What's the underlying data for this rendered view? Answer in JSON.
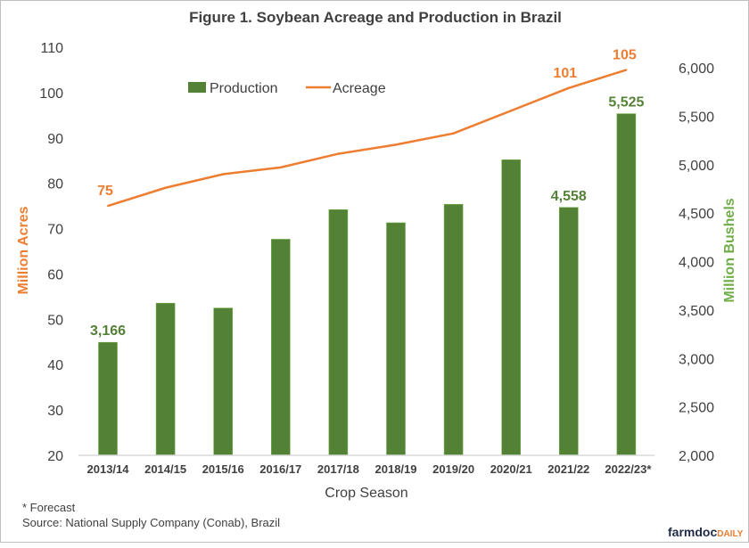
{
  "chart_data": {
    "type": "bar+line",
    "title": "Figure 1. Soybean Acreage and Production in Brazil",
    "xlabel": "Crop Season",
    "ylabel_left": "Million Acres",
    "ylabel_right": "Million Bushels",
    "categories": [
      "2013/14",
      "2014/15",
      "2015/16",
      "2016/17",
      "2017/18",
      "2018/19",
      "2019/20",
      "2020/21",
      "2021/22",
      "2022/23*"
    ],
    "left_axis": {
      "min": 20,
      "max": 110,
      "ticks": [
        "20",
        "30",
        "40",
        "50",
        "60",
        "70",
        "80",
        "90",
        "100",
        "110"
      ]
    },
    "right_axis": {
      "min": 2000,
      "max": 6000,
      "ticks": [
        "2,000",
        "2,500",
        "3,000",
        "3,500",
        "4,000",
        "4,500",
        "5,000",
        "5,500",
        "6,000"
      ]
    },
    "series": [
      {
        "name": "Production",
        "type": "bar",
        "axis": "right",
        "color": "#538135",
        "values": [
          3166,
          3570,
          3520,
          4230,
          4535,
          4400,
          4590,
          5050,
          4558,
          5525
        ],
        "labels": {
          "0": "3,166",
          "8": "4,558",
          "9": "5,525"
        }
      },
      {
        "name": "Acreage",
        "type": "line",
        "axis": "left",
        "color": "#ED7D31",
        "values": [
          75,
          79,
          82,
          83.5,
          86.5,
          88.5,
          91,
          96,
          101,
          105
        ],
        "labels": {
          "0": "75",
          "8": "101",
          "9": "105"
        }
      }
    ],
    "legend": "top-center",
    "grid": false
  },
  "footnotes": {
    "forecast": "* Forecast",
    "source": "Source: National Supply Company (Conab), Brazil"
  },
  "logo": {
    "part1": "farmdoc",
    "part2": "DAILY"
  },
  "colors": {
    "acres_axis": "#ED7D31",
    "bushels_axis": "#70AD47",
    "bar_label": "#538135",
    "text": "#404040"
  }
}
